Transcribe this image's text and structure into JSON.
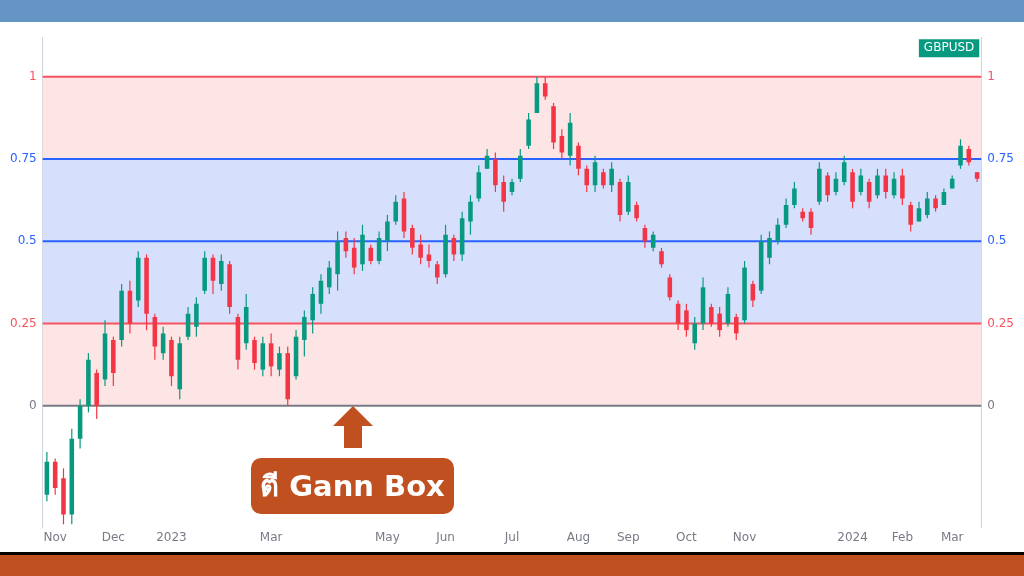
{
  "chart_data": {
    "type": "candlestick",
    "categories": [
      null,
      "Nov",
      null,
      null,
      null,
      null,
      null,
      null,
      "Dec",
      null,
      null,
      null,
      null,
      null,
      null,
      "2023",
      null,
      null,
      null,
      null,
      null,
      null,
      null,
      null,
      null,
      null,
      null,
      "Mar",
      null,
      null,
      null,
      null,
      null,
      null,
      null,
      null,
      null,
      null,
      null,
      null,
      null,
      "May",
      null,
      null,
      null,
      null,
      null,
      null,
      "Jun",
      null,
      null,
      null,
      null,
      null,
      null,
      null,
      "Jul",
      null,
      null,
      null,
      null,
      null,
      null,
      null,
      "Aug",
      null,
      null,
      null,
      null,
      null,
      "Sep",
      null,
      null,
      null,
      null,
      null,
      null,
      "Oct",
      null,
      null,
      null,
      null,
      null,
      null,
      "Nov",
      null,
      null,
      null,
      null,
      null,
      null,
      null,
      null,
      null,
      null,
      null,
      null,
      "2024",
      null,
      null,
      null,
      null,
      null,
      "Feb",
      null,
      null,
      null,
      null,
      null,
      "Mar",
      null,
      null,
      null
    ],
    "series": [
      {
        "name": "GBPUSD",
        "color": "#089981",
        "colors": [
          "#089981",
          "#f23645",
          "#f23645",
          "#089981",
          "#089981",
          "#089981",
          "#f23645",
          "#089981",
          "#f23645",
          "#089981",
          "#f23645",
          "#089981",
          "#f23645",
          "#f23645",
          "#089981",
          "#f23645",
          "#089981",
          "#089981",
          "#089981",
          "#089981",
          "#f23645",
          "#089981",
          "#f23645",
          "#f23645",
          "#089981",
          "#f23645",
          "#089981",
          "#f23645",
          "#089981",
          "#f23645",
          "#089981",
          "#089981",
          "#089981",
          "#089981",
          "#089981",
          "#089981",
          "#f23645",
          "#f23645",
          "#089981",
          "#f23645",
          "#089981",
          "#089981",
          "#089981",
          "#f23645",
          "#f23645",
          "#f23645",
          "#f23645",
          "#f23645",
          "#089981",
          "#f23645",
          "#089981",
          "#089981",
          "#089981",
          "#089981",
          "#f23645",
          "#f23645",
          "#089981",
          "#089981",
          "#089981",
          "#089981",
          "#f23645",
          "#f23645",
          "#f23645",
          "#089981",
          "#f23645",
          "#f23645",
          "#089981",
          "#f23645",
          "#089981",
          "#f23645",
          "#089981",
          "#f23645",
          "#f23645",
          "#089981",
          "#f23645",
          "#f23645",
          "#f23645",
          "#f23645",
          "#089981",
          "#089981",
          "#f23645",
          "#f23645",
          "#089981",
          "#f23645",
          "#089981",
          "#f23645",
          "#089981",
          "#089981",
          "#089981",
          "#089981",
          "#089981",
          "#f23645",
          "#f23645",
          "#089981",
          "#f23645",
          "#089981",
          "#089981",
          "#f23645",
          "#089981",
          "#f23645",
          "#089981",
          "#f23645",
          "#089981",
          "#f23645",
          "#f23645",
          "#089981",
          "#089981",
          "#f23645",
          "#089981",
          "#089981",
          "#089981",
          "#f23645",
          "#f23645"
        ],
        "ohlc": [
          [
            -0.27,
            -0.14,
            -0.29,
            -0.17
          ],
          [
            -0.17,
            -0.16,
            -0.27,
            -0.25
          ],
          [
            -0.22,
            -0.19,
            -0.36,
            -0.33
          ],
          [
            -0.33,
            -0.07,
            -0.36,
            -0.1
          ],
          [
            -0.1,
            0.02,
            -0.13,
            0.0
          ],
          [
            0.0,
            0.16,
            -0.02,
            0.14
          ],
          [
            0.1,
            0.11,
            -0.04,
            0.0
          ],
          [
            0.08,
            0.26,
            0.06,
            0.22
          ],
          [
            0.2,
            0.21,
            0.06,
            0.1
          ],
          [
            0.2,
            0.37,
            0.18,
            0.35
          ],
          [
            0.35,
            0.38,
            0.22,
            0.25
          ],
          [
            0.32,
            0.47,
            0.3,
            0.45
          ],
          [
            0.45,
            0.46,
            0.23,
            0.28
          ],
          [
            0.27,
            0.28,
            0.14,
            0.18
          ],
          [
            0.16,
            0.24,
            0.14,
            0.22
          ],
          [
            0.2,
            0.21,
            0.06,
            0.09
          ],
          [
            0.05,
            0.21,
            0.02,
            0.19
          ],
          [
            0.21,
            0.3,
            0.2,
            0.28
          ],
          [
            0.24,
            0.33,
            0.21,
            0.31
          ],
          [
            0.35,
            0.47,
            0.34,
            0.45
          ],
          [
            0.45,
            0.46,
            0.34,
            0.38
          ],
          [
            0.37,
            0.46,
            0.35,
            0.44
          ],
          [
            0.43,
            0.44,
            0.28,
            0.3
          ],
          [
            0.27,
            0.28,
            0.11,
            0.14
          ],
          [
            0.19,
            0.34,
            0.17,
            0.3
          ],
          [
            0.2,
            0.21,
            0.11,
            0.13
          ],
          [
            0.11,
            0.21,
            0.09,
            0.19
          ],
          [
            0.19,
            0.22,
            0.09,
            0.12
          ],
          [
            0.11,
            0.18,
            0.09,
            0.16
          ],
          [
            0.16,
            0.18,
            0.0,
            0.02
          ],
          [
            0.09,
            0.23,
            0.08,
            0.21
          ],
          [
            0.2,
            0.29,
            0.15,
            0.27
          ],
          [
            0.26,
            0.36,
            0.22,
            0.34
          ],
          [
            0.31,
            0.4,
            0.28,
            0.38
          ],
          [
            0.36,
            0.44,
            0.34,
            0.42
          ],
          [
            0.4,
            0.53,
            0.35,
            0.5
          ],
          [
            0.51,
            0.53,
            0.45,
            0.47
          ],
          [
            0.48,
            0.51,
            0.4,
            0.42
          ],
          [
            0.43,
            0.55,
            0.41,
            0.52
          ],
          [
            0.48,
            0.49,
            0.43,
            0.44
          ],
          [
            0.44,
            0.53,
            0.43,
            0.51
          ],
          [
            0.5,
            0.58,
            0.47,
            0.56
          ],
          [
            0.56,
            0.64,
            0.55,
            0.62
          ],
          [
            0.63,
            0.65,
            0.51,
            0.53
          ],
          [
            0.54,
            0.55,
            0.46,
            0.48
          ],
          [
            0.49,
            0.52,
            0.43,
            0.45
          ],
          [
            0.46,
            0.49,
            0.42,
            0.44
          ],
          [
            0.43,
            0.44,
            0.37,
            0.39
          ],
          [
            0.4,
            0.55,
            0.39,
            0.52
          ],
          [
            0.51,
            0.52,
            0.44,
            0.46
          ],
          [
            0.46,
            0.59,
            0.44,
            0.57
          ],
          [
            0.56,
            0.64,
            0.52,
            0.62
          ],
          [
            0.63,
            0.73,
            0.62,
            0.71
          ],
          [
            0.72,
            0.78,
            0.72,
            0.76
          ],
          [
            0.75,
            0.77,
            0.65,
            0.67
          ],
          [
            0.68,
            0.7,
            0.59,
            0.62
          ],
          [
            0.65,
            0.69,
            0.64,
            0.68
          ],
          [
            0.69,
            0.78,
            0.68,
            0.76
          ],
          [
            0.79,
            0.89,
            0.78,
            0.87
          ],
          [
            0.89,
            1.0,
            0.89,
            0.98
          ],
          [
            0.98,
            1.0,
            0.93,
            0.94
          ],
          [
            0.91,
            0.92,
            0.78,
            0.8
          ],
          [
            0.82,
            0.84,
            0.75,
            0.77
          ],
          [
            0.76,
            0.89,
            0.73,
            0.86
          ],
          [
            0.79,
            0.8,
            0.7,
            0.72
          ],
          [
            0.72,
            0.73,
            0.65,
            0.67
          ],
          [
            0.67,
            0.76,
            0.65,
            0.74
          ],
          [
            0.71,
            0.72,
            0.66,
            0.67
          ],
          [
            0.67,
            0.74,
            0.65,
            0.72
          ],
          [
            0.68,
            0.69,
            0.56,
            0.58
          ],
          [
            0.59,
            0.7,
            0.58,
            0.68
          ],
          [
            0.61,
            0.62,
            0.56,
            0.57
          ],
          [
            0.54,
            0.55,
            0.48,
            0.5
          ],
          [
            0.48,
            0.53,
            0.47,
            0.52
          ],
          [
            0.47,
            0.48,
            0.42,
            0.43
          ],
          [
            0.39,
            0.4,
            0.32,
            0.33
          ],
          [
            0.31,
            0.32,
            0.23,
            0.25
          ],
          [
            0.29,
            0.31,
            0.21,
            0.23
          ],
          [
            0.19,
            0.27,
            0.17,
            0.25
          ],
          [
            0.25,
            0.39,
            0.23,
            0.36
          ],
          [
            0.3,
            0.31,
            0.24,
            0.25
          ],
          [
            0.28,
            0.3,
            0.21,
            0.23
          ],
          [
            0.25,
            0.36,
            0.24,
            0.34
          ],
          [
            0.27,
            0.28,
            0.2,
            0.22
          ],
          [
            0.26,
            0.44,
            0.25,
            0.42
          ],
          [
            0.37,
            0.38,
            0.3,
            0.32
          ],
          [
            0.35,
            0.52,
            0.34,
            0.5
          ],
          [
            0.45,
            0.53,
            0.43,
            0.51
          ],
          [
            0.5,
            0.57,
            0.49,
            0.55
          ],
          [
            0.55,
            0.63,
            0.54,
            0.61
          ],
          [
            0.61,
            0.68,
            0.6,
            0.66
          ],
          [
            0.59,
            0.6,
            0.56,
            0.57
          ],
          [
            0.59,
            0.6,
            0.52,
            0.54
          ],
          [
            0.62,
            0.74,
            0.61,
            0.72
          ],
          [
            0.7,
            0.71,
            0.62,
            0.64
          ],
          [
            0.65,
            0.71,
            0.64,
            0.69
          ],
          [
            0.68,
            0.76,
            0.67,
            0.74
          ],
          [
            0.71,
            0.72,
            0.6,
            0.62
          ],
          [
            0.65,
            0.72,
            0.64,
            0.7
          ],
          [
            0.68,
            0.69,
            0.6,
            0.62
          ],
          [
            0.64,
            0.72,
            0.63,
            0.7
          ],
          [
            0.7,
            0.72,
            0.63,
            0.65
          ],
          [
            0.64,
            0.71,
            0.63,
            0.69
          ],
          [
            0.7,
            0.72,
            0.61,
            0.63
          ],
          [
            0.61,
            0.62,
            0.53,
            0.55
          ],
          [
            0.56,
            0.62,
            0.56,
            0.6
          ],
          [
            0.58,
            0.65,
            0.57,
            0.63
          ],
          [
            0.63,
            0.64,
            0.59,
            0.6
          ],
          [
            0.61,
            0.66,
            0.61,
            0.65
          ],
          [
            0.66,
            0.7,
            0.66,
            0.69
          ],
          [
            0.73,
            0.81,
            0.72,
            0.79
          ],
          [
            0.78,
            0.79,
            0.73,
            0.74
          ],
          [
            0.71,
            0.71,
            0.68,
            0.69
          ]
        ]
      }
    ],
    "ylim": [
      -0.37,
      1.12
    ],
    "yticks": [
      0,
      0.25,
      0.5,
      0.75,
      1
    ],
    "y2lim": [
      -0.37,
      1.12
    ],
    "y2ticks": [
      0,
      0.25,
      0.5,
      0.75,
      1
    ],
    "bands": [
      {
        "axis": "y",
        "from": 0,
        "to": 0.25,
        "color": "#fde4e5"
      },
      {
        "axis": "y",
        "from": 0.25,
        "to": 0.75,
        "color": "#d6e0fd"
      },
      {
        "axis": "y",
        "from": 0.75,
        "to": 1,
        "color": "#fde4e5"
      }
    ],
    "ref_lines": [
      {
        "axis": "y",
        "value": 0,
        "color": "#787b86"
      },
      {
        "axis": "y",
        "value": 0.25,
        "color": "#f7525f"
      },
      {
        "axis": "y",
        "value": 0.5,
        "color": "#2962ff"
      },
      {
        "axis": "y",
        "value": 0.75,
        "color": "#2962ff"
      },
      {
        "axis": "y",
        "value": 1,
        "color": "#f7525f"
      }
    ],
    "grid": false,
    "legend": false,
    "annotations": [
      {
        "text": "ตี Gann Box",
        "y": 0
      }
    ]
  }
}
